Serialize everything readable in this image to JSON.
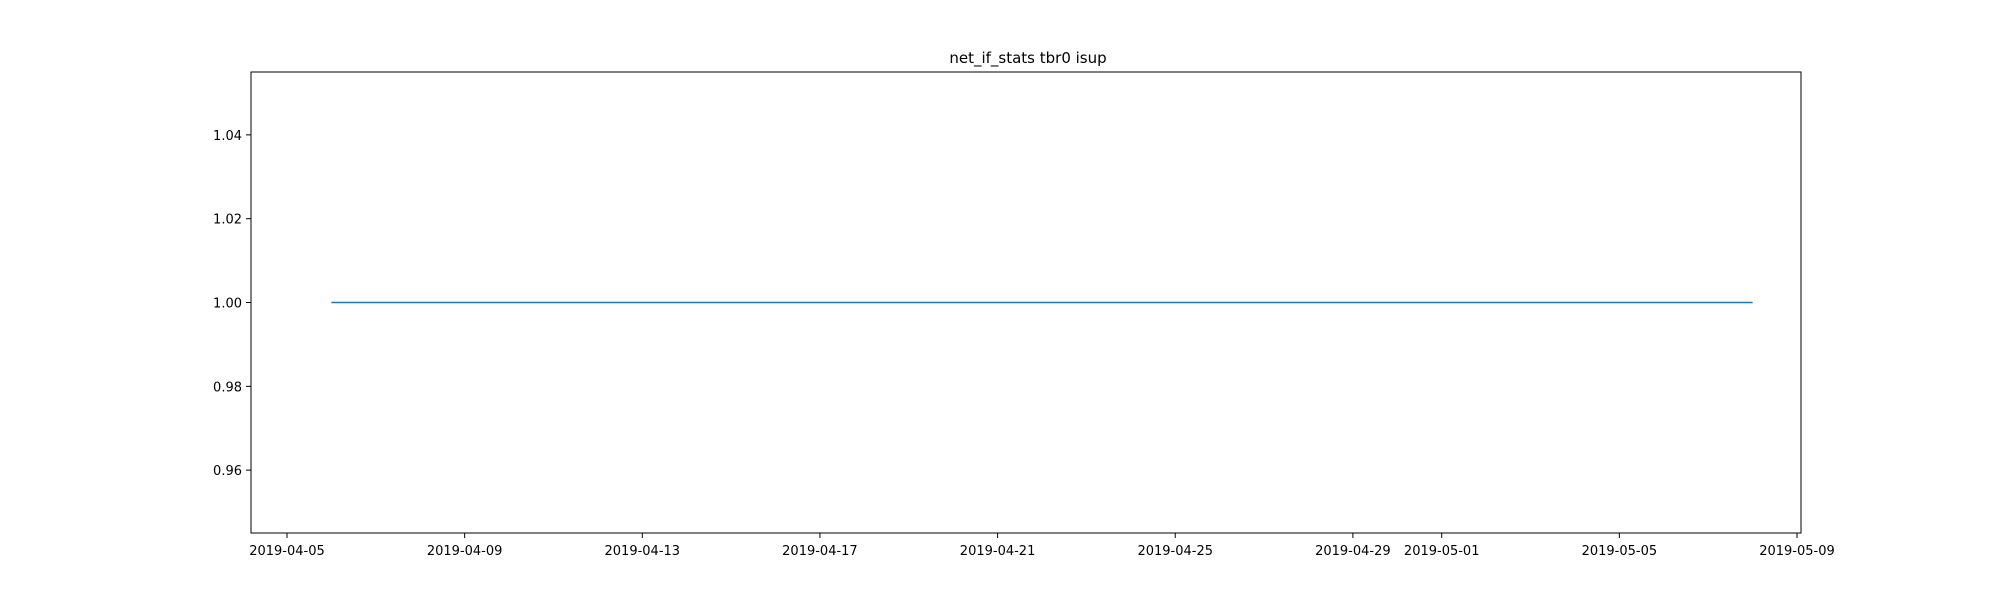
{
  "chart_data": {
    "type": "line",
    "title": "net_if_stats tbr0 isup",
    "xlabel": "",
    "ylabel": "",
    "x_axis": {
      "ticks": [
        "2019-04-05",
        "2019-04-09",
        "2019-04-13",
        "2019-04-17",
        "2019-04-21",
        "2019-04-25",
        "2019-04-29",
        "2019-05-01",
        "2019-05-05",
        "2019-05-09"
      ]
    },
    "y_axis": {
      "ylim": [
        0.945,
        1.055
      ],
      "ticks": [
        0.96,
        0.98,
        1.0,
        1.02,
        1.04
      ],
      "tick_labels": [
        "0.96",
        "0.98",
        "1.00",
        "1.02",
        "1.04"
      ]
    },
    "grid": false,
    "series": [
      {
        "x": [
          "2019-04-06",
          "2019-05-08"
        ],
        "y": [
          1.0,
          1.0
        ],
        "color": "#1f77b4"
      }
    ]
  }
}
